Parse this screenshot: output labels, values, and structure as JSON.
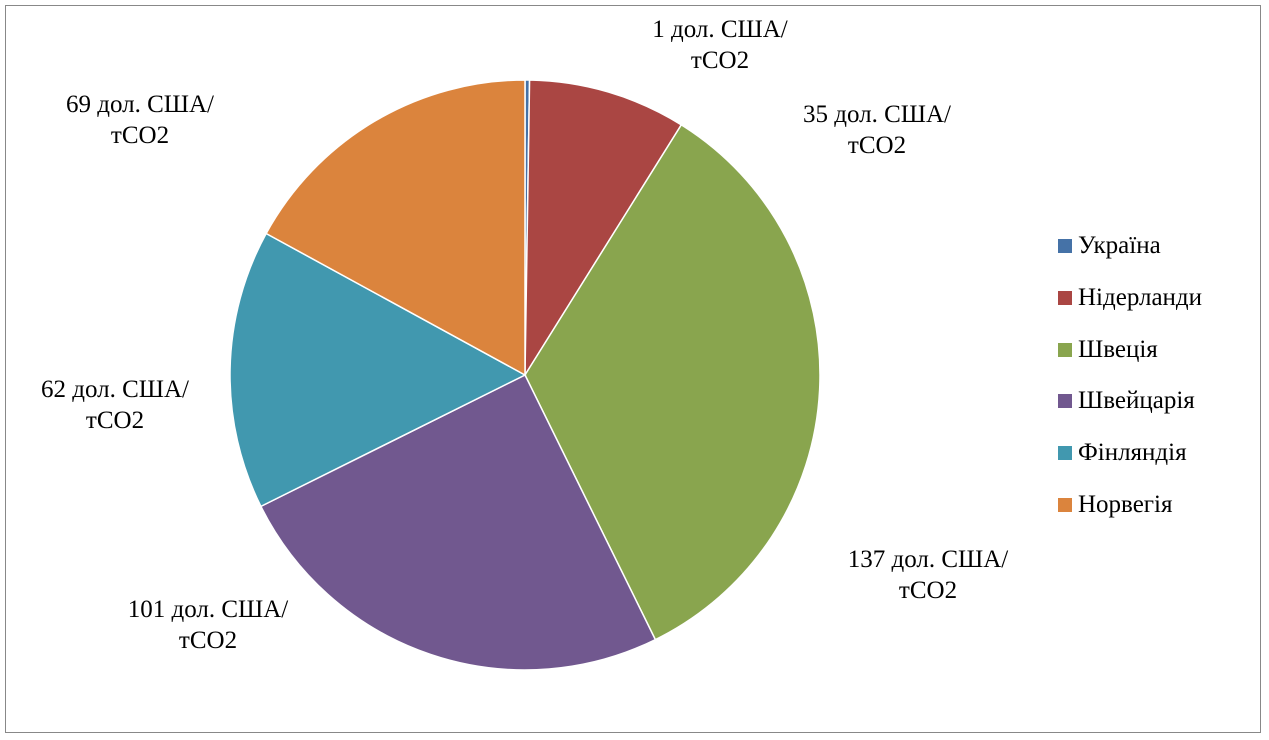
{
  "chart_data": {
    "type": "pie",
    "categories": [
      "Україна",
      "Нідерланди",
      "Швеція",
      "Швейцарія",
      "Фінляндія",
      "Норвегія"
    ],
    "values": [
      1,
      35,
      137,
      101,
      62,
      69
    ],
    "value_labels": [
      "1 дол. США/тСО2",
      "35 дол. США/тСО2",
      "137 дол. США/тСО2",
      "101 дол. США/тСО2",
      "62 дол. США/тСО2",
      "69 дол. США/тСО2"
    ],
    "colors": [
      "#4572a7",
      "#aa4643",
      "#89a54e",
      "#71588f",
      "#4198af",
      "#db843d"
    ],
    "legend": "right"
  }
}
